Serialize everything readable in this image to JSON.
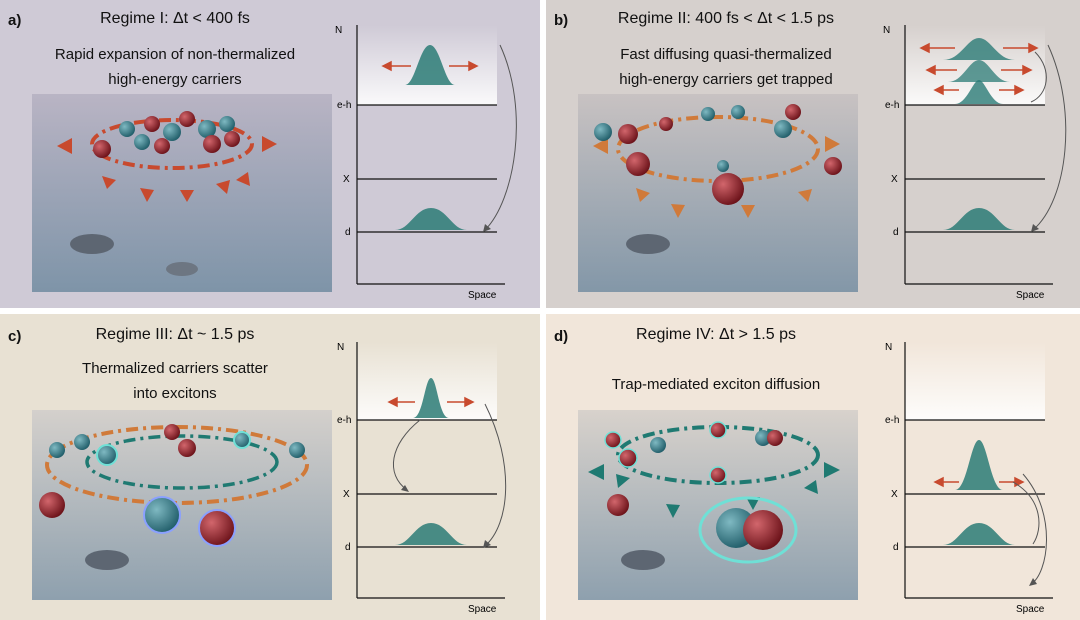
{
  "colors": {
    "panel_a_bg": "#cfcad6",
    "panel_b_bg": "#d6d0cd",
    "panel_c_bg": "#e8e1d3",
    "panel_d_bg": "#f1e6da",
    "electron": "#2f7c86",
    "hole": "#a3222b",
    "arrow_red": "#c84a2e",
    "arrow_orange": "#d07a3a",
    "arrow_teal": "#1f7a72",
    "level_line": "#111111",
    "gaussian": "#2b7b76"
  },
  "panels": [
    {
      "id": "a",
      "label": "a)",
      "title": "Regime I: Δt < 400 fs",
      "description_line1": "Rapid expansion of non-thermalized",
      "description_line2": "high-energy carriers",
      "diagram": {
        "y_axis": "N",
        "x_axis": "Space",
        "levels": [
          "e-h",
          "X",
          "d"
        ]
      }
    },
    {
      "id": "b",
      "label": "b)",
      "title": "Regime II: 400 fs < Δt < 1.5 ps",
      "description_line1": "Fast diffusing quasi-thermalized",
      "description_line2": "high-energy carriers get trapped",
      "diagram": {
        "y_axis": "N",
        "x_axis": "Space",
        "levels": [
          "e-h",
          "X",
          "d"
        ]
      }
    },
    {
      "id": "c",
      "label": "c)",
      "title": "Regime III: Δt ~ 1.5 ps",
      "description_line1": "Thermalized carriers scatter",
      "description_line2": "into excitons",
      "diagram": {
        "y_axis": "N",
        "x_axis": "Space",
        "levels": [
          "e-h",
          "X",
          "d"
        ]
      }
    },
    {
      "id": "d",
      "label": "d)",
      "title": "Regime IV: Δt > 1.5 ps",
      "description_line1": "Trap-mediated exciton diffusion",
      "description_line2": "",
      "diagram": {
        "y_axis": "N",
        "x_axis": "Space",
        "levels": [
          "e-h",
          "X",
          "d"
        ]
      }
    }
  ]
}
